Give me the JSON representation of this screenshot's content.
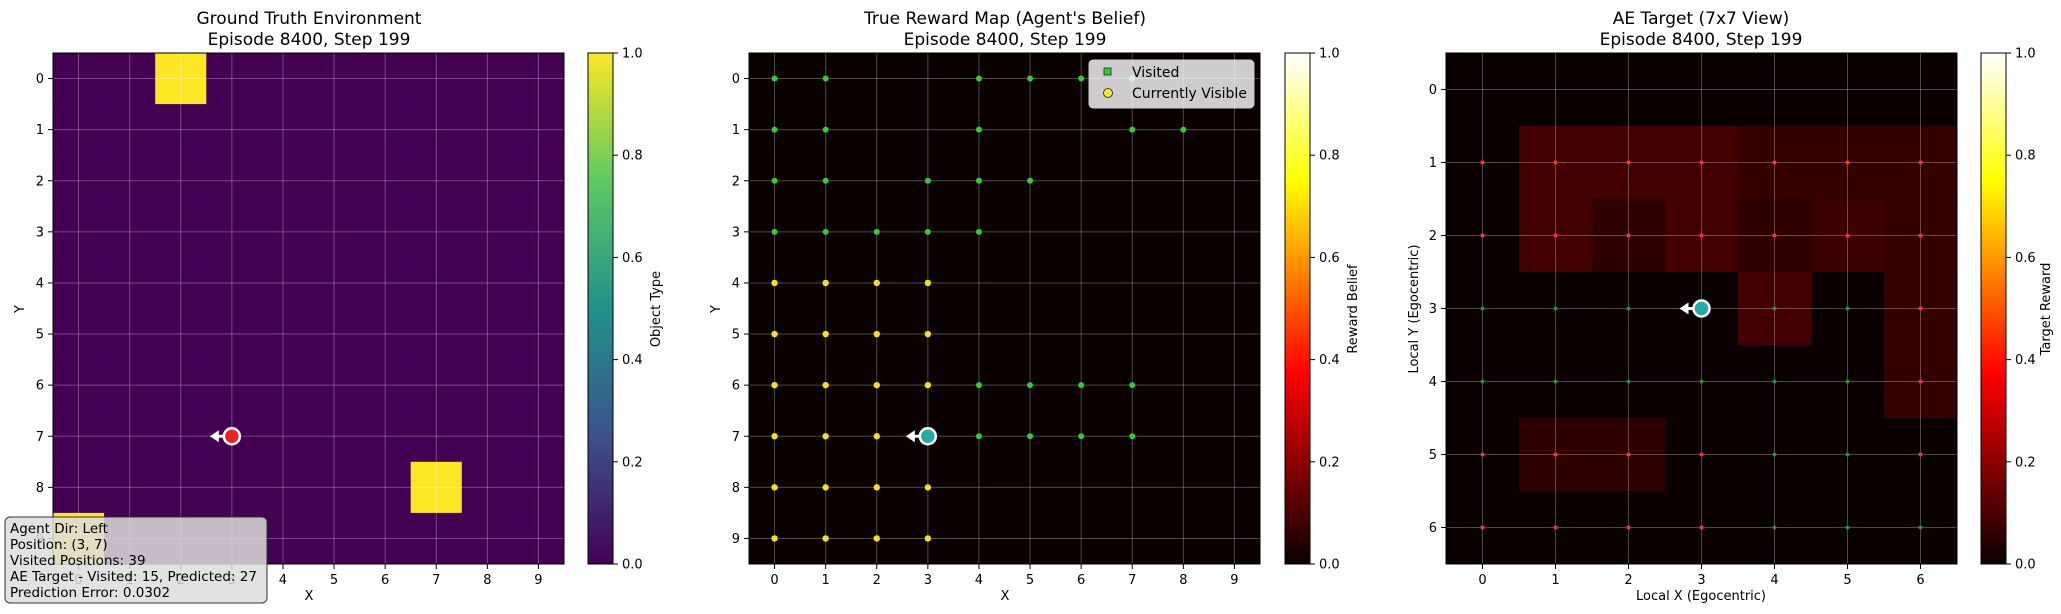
{
  "panels": [
    {
      "title_line1": "Ground Truth Environment",
      "title_line2": "Episode 8400, Step 199",
      "xlabel": "X",
      "ylabel": "Y",
      "colorbar_label": "Object Type",
      "colorbar_ticks": [
        "0.0",
        "0.2",
        "0.4",
        "0.6",
        "0.8",
        "1.0"
      ],
      "x_ticks": [
        "0",
        "1",
        "2",
        "3",
        "4",
        "5",
        "6",
        "7",
        "8",
        "9"
      ],
      "y_ticks": [
        "0",
        "1",
        "2",
        "3",
        "4",
        "5",
        "6",
        "7",
        "8",
        "9"
      ]
    },
    {
      "title_line1": "True Reward Map (Agent's Belief)",
      "title_line2": "Episode 8400, Step 199",
      "xlabel": "X",
      "ylabel": "Y",
      "colorbar_label": "Reward Belief",
      "colorbar_ticks": [
        "0.0",
        "0.2",
        "0.4",
        "0.6",
        "0.8",
        "1.0"
      ],
      "x_ticks": [
        "0",
        "1",
        "2",
        "3",
        "4",
        "5",
        "6",
        "7",
        "8",
        "9"
      ],
      "y_ticks": [
        "0",
        "1",
        "2",
        "3",
        "4",
        "5",
        "6",
        "7",
        "8",
        "9"
      ],
      "legend": [
        "Visited",
        "Currently Visible"
      ]
    },
    {
      "title_line1": "AE Target (7x7 View)",
      "title_line2": "Episode 8400, Step 199",
      "xlabel": "Local X (Egocentric)",
      "ylabel": "Local Y (Egocentric)",
      "colorbar_label": "Target Reward",
      "colorbar_ticks": [
        "0.0",
        "0.2",
        "0.4",
        "0.6",
        "0.8",
        "1.0"
      ],
      "x_ticks": [
        "0",
        "1",
        "2",
        "3",
        "4",
        "5",
        "6"
      ],
      "y_ticks": [
        "0",
        "1",
        "2",
        "3",
        "4",
        "5",
        "6"
      ]
    }
  ],
  "info_box": {
    "line1": "Agent Dir: Left",
    "line2": "Position: (3, 7)",
    "line3": "Visited Positions: 39",
    "line4": "AE Target - Visited: 15, Predicted: 27",
    "line5": "Prediction Error: 0.0302"
  },
  "chart_data": [
    {
      "type": "heatmap",
      "grid_size": [
        10,
        10
      ],
      "value_range": [
        0,
        1
      ],
      "colormap": "viridis",
      "objects_value_1": [
        [
          2,
          0
        ],
        [
          7,
          8
        ],
        [
          0,
          9
        ]
      ],
      "agent": {
        "x": 3,
        "y": 7,
        "dir": "left",
        "color": "#ee2222"
      }
    },
    {
      "type": "heatmap",
      "grid_size": [
        10,
        10
      ],
      "value_range": [
        0,
        1
      ],
      "colormap": "hot",
      "background_value": 0,
      "visited_points": [
        [
          0,
          0
        ],
        [
          1,
          0
        ],
        [
          4,
          0
        ],
        [
          5,
          0
        ],
        [
          6,
          0
        ],
        [
          7,
          0
        ],
        [
          0,
          1
        ],
        [
          1,
          1
        ],
        [
          4,
          1
        ],
        [
          7,
          1
        ],
        [
          8,
          1
        ],
        [
          0,
          2
        ],
        [
          1,
          2
        ],
        [
          3,
          2
        ],
        [
          4,
          2
        ],
        [
          5,
          2
        ],
        [
          0,
          3
        ],
        [
          1,
          3
        ],
        [
          2,
          3
        ],
        [
          3,
          3
        ],
        [
          4,
          3
        ],
        [
          4,
          6
        ],
        [
          5,
          6
        ],
        [
          6,
          6
        ],
        [
          7,
          6
        ],
        [
          4,
          7
        ],
        [
          5,
          7
        ],
        [
          6,
          7
        ],
        [
          7,
          7
        ]
      ],
      "visible_points": [
        [
          0,
          4
        ],
        [
          1,
          4
        ],
        [
          2,
          4
        ],
        [
          3,
          4
        ],
        [
          0,
          5
        ],
        [
          1,
          5
        ],
        [
          2,
          5
        ],
        [
          3,
          5
        ],
        [
          0,
          6
        ],
        [
          1,
          6
        ],
        [
          2,
          6
        ],
        [
          3,
          6
        ],
        [
          0,
          7
        ],
        [
          1,
          7
        ],
        [
          2,
          7
        ],
        [
          0,
          8
        ],
        [
          1,
          8
        ],
        [
          2,
          8
        ],
        [
          3,
          8
        ],
        [
          0,
          9
        ],
        [
          1,
          9
        ],
        [
          2,
          9
        ],
        [
          3,
          9
        ]
      ],
      "agent": {
        "x": 3,
        "y": 7,
        "dir": "left",
        "color": "#22aaaa"
      }
    },
    {
      "type": "heatmap",
      "grid_size": [
        7,
        7
      ],
      "value_range": [
        0,
        1
      ],
      "colormap": "hot",
      "values": [
        [
          0.0,
          0.0,
          0.0,
          0.0,
          0.0,
          0.0,
          0.0
        ],
        [
          0.0,
          0.08,
          0.08,
          0.08,
          0.06,
          0.06,
          0.06
        ],
        [
          0.0,
          0.08,
          0.05,
          0.08,
          0.05,
          0.07,
          0.06
        ],
        [
          0.0,
          0.0,
          0.0,
          0.0,
          0.08,
          0.0,
          0.06
        ],
        [
          0.0,
          0.0,
          0.0,
          0.0,
          0.0,
          0.0,
          0.06
        ],
        [
          0.0,
          0.05,
          0.05,
          0.0,
          0.0,
          0.0,
          0.0
        ],
        [
          0.0,
          0.0,
          0.0,
          0.0,
          0.0,
          0.0,
          0.0
        ]
      ],
      "red_points": [
        [
          0,
          1
        ],
        [
          1,
          1
        ],
        [
          2,
          1
        ],
        [
          3,
          1
        ],
        [
          4,
          1
        ],
        [
          5,
          1
        ],
        [
          6,
          1
        ],
        [
          0,
          2
        ],
        [
          1,
          2
        ],
        [
          2,
          2
        ],
        [
          3,
          2
        ],
        [
          4,
          2
        ],
        [
          5,
          2
        ],
        [
          6,
          2
        ],
        [
          3,
          3
        ],
        [
          6,
          3
        ],
        [
          6,
          4
        ],
        [
          0,
          5
        ],
        [
          1,
          5
        ],
        [
          2,
          5
        ],
        [
          3,
          5
        ],
        [
          6,
          5
        ],
        [
          0,
          6
        ],
        [
          1,
          6
        ],
        [
          2,
          6
        ],
        [
          3,
          6
        ]
      ],
      "green_points": [
        [
          0,
          3
        ],
        [
          1,
          3
        ],
        [
          2,
          3
        ],
        [
          4,
          3
        ],
        [
          5,
          3
        ],
        [
          0,
          4
        ],
        [
          1,
          4
        ],
        [
          2,
          4
        ],
        [
          3,
          4
        ],
        [
          4,
          4
        ],
        [
          5,
          4
        ],
        [
          4,
          5
        ],
        [
          5,
          5
        ],
        [
          4,
          6
        ],
        [
          5,
          6
        ],
        [
          6,
          6
        ]
      ],
      "agent": {
        "x": 3,
        "y": 3,
        "dir": "left",
        "color": "#22aaaa"
      }
    }
  ]
}
